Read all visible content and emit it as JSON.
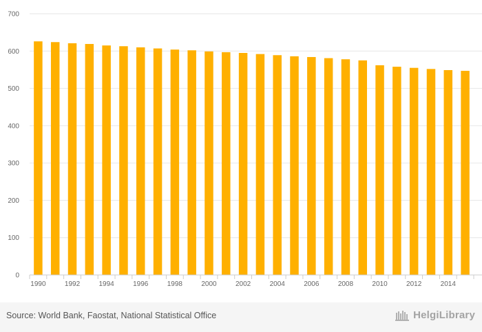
{
  "chart_data": {
    "type": "bar",
    "categories": [
      "1990",
      "1991",
      "1992",
      "1993",
      "1994",
      "1995",
      "1996",
      "1997",
      "1998",
      "1999",
      "2000",
      "2001",
      "2002",
      "2003",
      "2004",
      "2005",
      "2006",
      "2007",
      "2008",
      "2009",
      "2010",
      "2011",
      "2012",
      "2013",
      "2014",
      "2015"
    ],
    "values": [
      626,
      624,
      621,
      619,
      615,
      613,
      610,
      607,
      604,
      602,
      599,
      597,
      595,
      592,
      589,
      586,
      584,
      581,
      578,
      575,
      562,
      558,
      555,
      552,
      549,
      547
    ],
    "x_tick_labels": [
      "1990",
      "1992",
      "1994",
      "1996",
      "1998",
      "2000",
      "2002",
      "2004",
      "2006",
      "2008",
      "2010",
      "2012",
      "2014"
    ],
    "y_ticks": [
      "0",
      "100",
      "200",
      "300",
      "400",
      "500",
      "600",
      "700"
    ],
    "ylim": [
      0,
      700
    ],
    "grid": true,
    "legend": "none",
    "bar_color": "#ffb000",
    "title": "",
    "xlabel": "",
    "ylabel": ""
  },
  "footer": {
    "source": "Source: World Bank, Faostat, National Statistical Office",
    "logo_text": "HelgiLibrary"
  }
}
